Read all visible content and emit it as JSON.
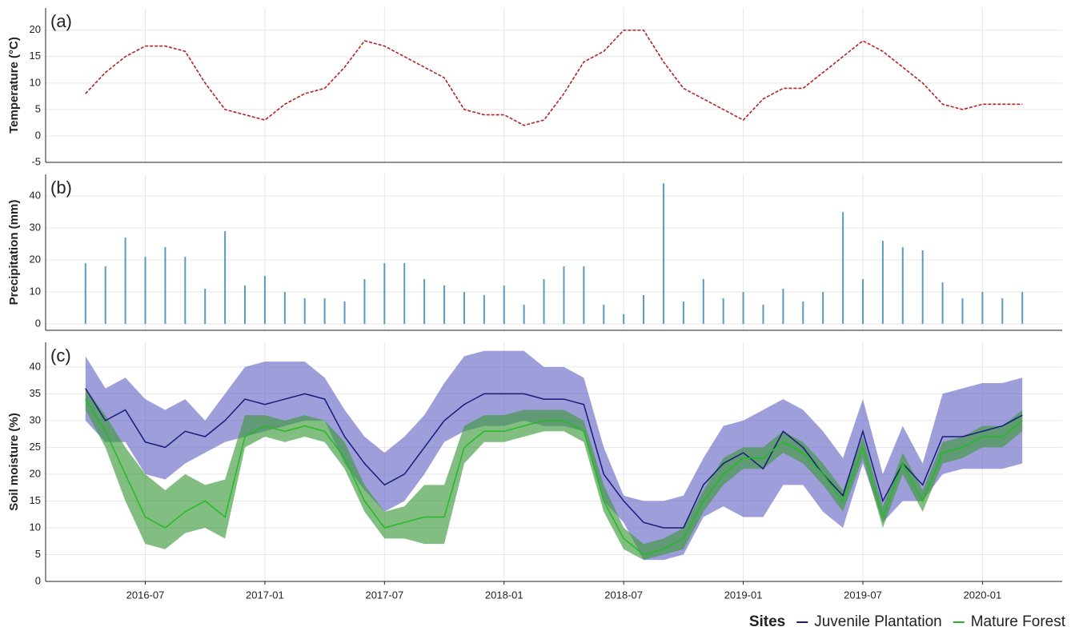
{
  "chart_data": [
    {
      "type": "line",
      "panel_label": "(a)",
      "y_label": "Temperature (°C)",
      "x": [
        "2016-04",
        "2016-05",
        "2016-06",
        "2016-07",
        "2016-08",
        "2016-09",
        "2016-10",
        "2016-11",
        "2016-12",
        "2017-01",
        "2017-02",
        "2017-03",
        "2017-04",
        "2017-05",
        "2017-06",
        "2017-07",
        "2017-08",
        "2017-09",
        "2017-10",
        "2017-11",
        "2017-12",
        "2018-01",
        "2018-02",
        "2018-03",
        "2018-04",
        "2018-05",
        "2018-06",
        "2018-07",
        "2018-08",
        "2018-09",
        "2018-10",
        "2018-11",
        "2018-12",
        "2019-01",
        "2019-02",
        "2019-03",
        "2019-04",
        "2019-05",
        "2019-06",
        "2019-07",
        "2019-08",
        "2019-09",
        "2019-10",
        "2019-11",
        "2019-12",
        "2020-01",
        "2020-02",
        "2020-03"
      ],
      "series": [
        {
          "color": "#b22222",
          "dashed": true,
          "values": [
            8,
            12,
            15,
            17,
            17,
            16,
            10,
            5,
            4,
            3,
            6,
            8,
            9,
            13,
            18,
            17,
            15,
            13,
            11,
            5,
            4,
            4,
            2,
            3,
            8,
            14,
            16,
            20,
            20,
            14,
            9,
            7,
            5,
            3,
            7,
            9,
            9,
            12,
            15,
            18,
            16,
            13,
            10,
            6,
            5,
            6,
            6,
            6
          ]
        }
      ],
      "ylim": [
        -5,
        24.2
      ],
      "yticks": [
        -5,
        0,
        5,
        10,
        15,
        20
      ],
      "grid": true
    },
    {
      "type": "bar",
      "panel_label": "(b)",
      "y_label": "Precipitation (mm)",
      "x": [
        "2016-04",
        "2016-05",
        "2016-06",
        "2016-07",
        "2016-08",
        "2016-09",
        "2016-10",
        "2016-11",
        "2016-12",
        "2017-01",
        "2017-02",
        "2017-03",
        "2017-04",
        "2017-05",
        "2017-06",
        "2017-07",
        "2017-08",
        "2017-09",
        "2017-10",
        "2017-11",
        "2017-12",
        "2018-01",
        "2018-02",
        "2018-03",
        "2018-04",
        "2018-05",
        "2018-06",
        "2018-07",
        "2018-08",
        "2018-09",
        "2018-10",
        "2018-11",
        "2018-12",
        "2019-01",
        "2019-02",
        "2019-03",
        "2019-04",
        "2019-05",
        "2019-06",
        "2019-07",
        "2019-08",
        "2019-09",
        "2019-10",
        "2019-11",
        "2019-12",
        "2020-01",
        "2020-02",
        "2020-03"
      ],
      "series": [
        {
          "color": "#5a9ac0",
          "values": [
            19,
            18,
            27,
            21,
            24,
            21,
            11,
            29,
            12,
            15,
            10,
            8,
            8,
            7,
            14,
            19,
            19,
            14,
            12,
            10,
            9,
            12,
            6,
            14,
            18,
            18,
            6,
            3,
            9,
            44,
            7,
            14,
            8,
            10,
            6,
            11,
            7,
            10,
            35,
            14,
            26,
            24,
            23,
            13,
            8,
            10,
            8,
            10
          ]
        }
      ],
      "ylim": [
        -2,
        46.8
      ],
      "yticks": [
        0,
        10,
        20,
        30,
        40
      ],
      "grid": true
    },
    {
      "type": "band",
      "panel_label": "(c)",
      "y_label": "Soil moisture (%)",
      "x": [
        "2016-04",
        "2016-05",
        "2016-06",
        "2016-07",
        "2016-08",
        "2016-09",
        "2016-10",
        "2016-11",
        "2016-12",
        "2017-01",
        "2017-02",
        "2017-03",
        "2017-04",
        "2017-05",
        "2017-06",
        "2017-07",
        "2017-08",
        "2017-09",
        "2017-10",
        "2017-11",
        "2017-12",
        "2018-01",
        "2018-02",
        "2018-03",
        "2018-04",
        "2018-05",
        "2018-06",
        "2018-07",
        "2018-08",
        "2018-09",
        "2018-10",
        "2018-11",
        "2018-12",
        "2019-01",
        "2019-02",
        "2019-03",
        "2019-04",
        "2019-05",
        "2019-06",
        "2019-07",
        "2019-08",
        "2019-09",
        "2019-10",
        "2019-11",
        "2019-12",
        "2020-01",
        "2020-02",
        "2020-03"
      ],
      "legend_title": "Sites",
      "series": [
        {
          "name": "Juvenile Plantation",
          "color": "#1a1a7a",
          "band_color": "#6a6ac8",
          "values": [
            36,
            30,
            32,
            26,
            25,
            28,
            27,
            30,
            34,
            33,
            34,
            35,
            34,
            27,
            22,
            18,
            20,
            25,
            30,
            33,
            35,
            35,
            35,
            34,
            34,
            33,
            20,
            15,
            11,
            10,
            10,
            18,
            22,
            24,
            21,
            28,
            25,
            20,
            16,
            28,
            15,
            22,
            18,
            27,
            27,
            28,
            29,
            31
          ],
          "band": {
            "lower": [
              30,
              26,
              26,
              20,
              19,
              22,
              24,
              26,
              27,
              28,
              29,
              30,
              30,
              22,
              17,
              13,
              15,
              20,
              26,
              28,
              29,
              29,
              30,
              29,
              29,
              28,
              15,
              11,
              4,
              4,
              5,
              12,
              14,
              12,
              12,
              18,
              18,
              13,
              10,
              22,
              11,
              15,
              15,
              20,
              21,
              21,
              21,
              22
            ],
            "upper": [
              42,
              36,
              38,
              34,
              32,
              34,
              30,
              35,
              40,
              41,
              41,
              41,
              38,
              32,
              27,
              24,
              27,
              31,
              37,
              42,
              43,
              43,
              43,
              40,
              40,
              38,
              25,
              16,
              15,
              15,
              16,
              23,
              29,
              30,
              32,
              34,
              32,
              28,
              23,
              34,
              20,
              29,
              22,
              35,
              36,
              37,
              37,
              38
            ]
          }
        },
        {
          "name": "Mature Forest",
          "color": "#22bb22",
          "band_color": "#3f9a3f",
          "values": [
            34,
            28,
            20,
            12,
            10,
            13,
            15,
            12,
            27,
            29,
            28,
            29,
            28,
            23,
            15,
            10,
            11,
            12,
            12,
            25,
            28,
            28,
            29,
            30,
            30,
            28,
            15,
            8,
            5,
            6,
            8,
            15,
            20,
            23,
            23,
            26,
            24,
            20,
            15,
            25,
            12,
            22,
            15,
            24,
            25,
            27,
            27,
            30
          ],
          "band": {
            "lower": [
              32,
              25,
              15,
              7,
              6,
              9,
              10,
              8,
              25,
              27,
              26,
              27,
              26,
              21,
              13,
              8,
              8,
              7,
              7,
              22,
              26,
              26,
              27,
              28,
              28,
              26,
              13,
              6,
              4,
              5,
              6,
              13,
              18,
              21,
              21,
              24,
              22,
              18,
              13,
              23,
              10,
              20,
              13,
              22,
              23,
              25,
              25,
              28
            ],
            "upper": [
              36,
              31,
              25,
              20,
              17,
              20,
              18,
              19,
              31,
              31,
              30,
              31,
              30,
              26,
              18,
              13,
              14,
              18,
              18,
              29,
              31,
              31,
              32,
              32,
              32,
              30,
              18,
              10,
              7,
              8,
              10,
              17,
              23,
              25,
              25,
              28,
              26,
              22,
              17,
              27,
              14,
              24,
              17,
              26,
              27,
              29,
              29,
              32
            ]
          }
        }
      ],
      "xlim": [
        "2016-02",
        "2020-05"
      ],
      "xticks": [
        "2016-07",
        "2017-01",
        "2017-07",
        "2018-01",
        "2018-07",
        "2019-01",
        "2019-07",
        "2020-01"
      ],
      "ylim": [
        0,
        44.6
      ],
      "yticks": [
        0,
        5,
        10,
        15,
        20,
        25,
        30,
        35,
        40
      ],
      "grid": true
    }
  ]
}
